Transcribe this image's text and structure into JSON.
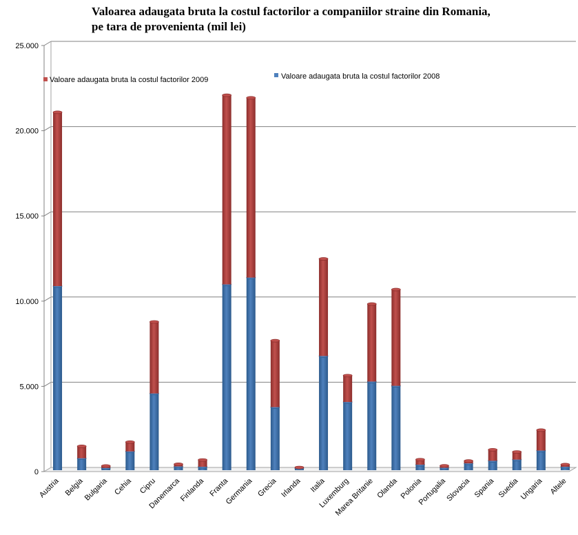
{
  "chart_data": {
    "type": "bar",
    "stacked": true,
    "title_line1": "Valoarea adaugata bruta la costul factorilor a companiilor straine din Romania,",
    "title_line2": "pe tara de provenienta   (mil lei)",
    "categories": [
      "Austria",
      "Belgia",
      "Bulgaria",
      "Cehia",
      "Cipru",
      "Danemarca",
      "Finlanda",
      "Franta",
      "Germania",
      "Grecia",
      "Irlanda",
      "Italia",
      "Luxemburg",
      "Marea Britanie",
      "Olanda",
      "Polonia",
      "Portugalia",
      "Slovacia",
      "Spania",
      "Suedia",
      "Ungaria",
      "Altele"
    ],
    "series": [
      {
        "name": "Valoare adaugata bruta la costul factorilor 2008",
        "color": "#4f81bd",
        "values": [
          10800,
          700,
          130,
          1100,
          4500,
          220,
          200,
          10900,
          11300,
          3700,
          100,
          6700,
          4000,
          5200,
          4950,
          320,
          140,
          400,
          550,
          620,
          1150,
          200
        ]
      },
      {
        "name": "Valoare adaugata bruta la costul factorilor 2009",
        "color": "#c0504d",
        "values": [
          10200,
          700,
          120,
          550,
          4200,
          130,
          400,
          11100,
          10550,
          3900,
          60,
          5700,
          1550,
          4550,
          5650,
          300,
          120,
          140,
          650,
          450,
          1200,
          130
        ]
      }
    ],
    "ylim": [
      0,
      25000
    ],
    "yticks": [
      0,
      5000,
      10000,
      15000,
      20000,
      25000
    ],
    "ytick_labels": [
      "0",
      "5.000",
      "10.000",
      "15.000",
      "20.000",
      "25.000"
    ],
    "legend_2009": "Valoare adaugata bruta la costul factorilor 2009",
    "legend_2008": "Valoare adaugata bruta la costul factorilor 2008"
  }
}
